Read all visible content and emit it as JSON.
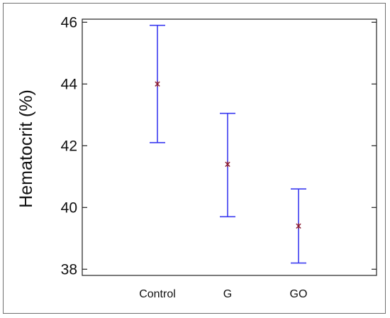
{
  "chart_data": {
    "type": "scatter",
    "title": "",
    "xlabel": "",
    "ylabel": "Hematocrit (%)",
    "categories": [
      "Control",
      "G",
      "GO"
    ],
    "means": [
      44.0,
      41.4,
      39.4
    ],
    "lower": [
      42.1,
      39.7,
      38.2
    ],
    "upper": [
      45.9,
      43.05,
      40.6
    ],
    "ylim": [
      37.8,
      46.1
    ],
    "yticks": [
      38,
      40,
      42,
      44,
      46
    ],
    "grid": false,
    "colors": {
      "errorbar": "#3b3bf0",
      "marker": "#8b1a2f",
      "axis": "#222222"
    }
  }
}
